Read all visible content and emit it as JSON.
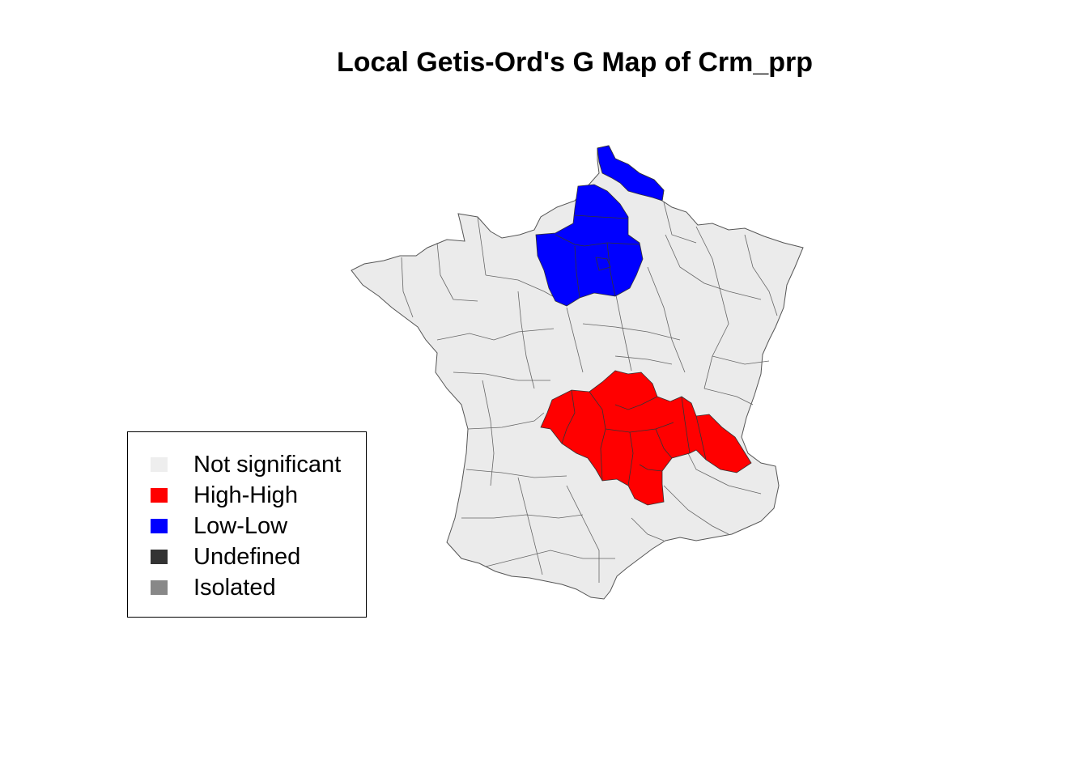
{
  "title": "Local Getis-Ord's G Map of Crm_prp",
  "legend": {
    "items": [
      {
        "label": "Not significant",
        "color": "#eeeeee"
      },
      {
        "label": "High-High",
        "color": "#ff0000"
      },
      {
        "label": "Low-Low",
        "color": "#0000ff"
      },
      {
        "label": "Undefined",
        "color": "#333333"
      },
      {
        "label": "Isolated",
        "color": "#888888"
      }
    ]
  },
  "map": {
    "region": "France (departments)",
    "border_color": "#555555",
    "clusters": {
      "not_significant_fill": "#ebebeb",
      "high_high_fill": "#ff0000",
      "low_low_fill": "#0000ff"
    }
  }
}
